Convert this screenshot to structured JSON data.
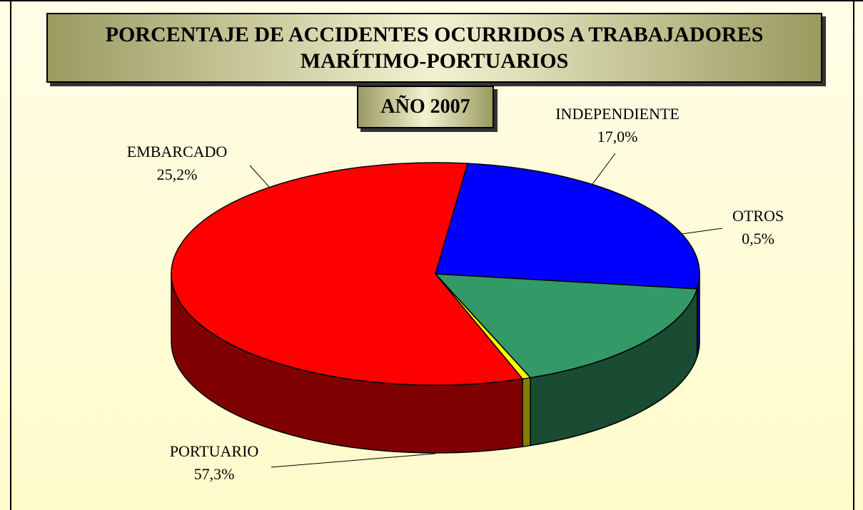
{
  "chart_data": {
    "type": "pie",
    "title": "PORCENTAJE DE ACCIDENTES OCURRIDOS A TRABAJADORES MARÍTIMO-PORTUARIOS",
    "subtitle": "AÑO 2007",
    "categories": [
      "EMBARCADO",
      "INDEPENDIENTE",
      "OTROS",
      "PORTUARIO"
    ],
    "values": [
      25.2,
      17.0,
      0.5,
      57.3
    ],
    "value_labels": [
      "25,2%",
      "17,0%",
      "0,5%",
      "57,3%"
    ],
    "colors": [
      "#0000ff",
      "#339966",
      "#ffff00",
      "#ff0000"
    ]
  }
}
